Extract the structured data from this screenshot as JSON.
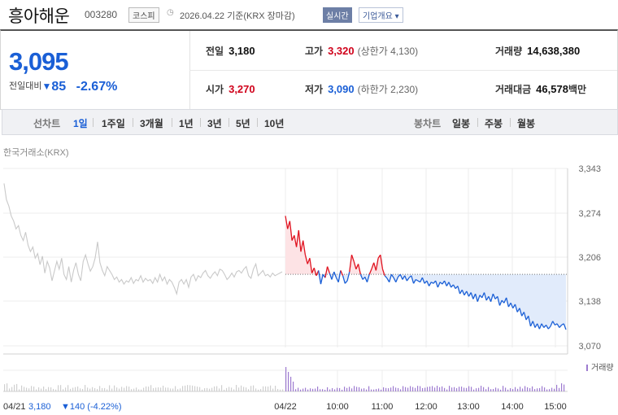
{
  "header": {
    "company": "흥아해운",
    "code": "003280",
    "market": "코스피",
    "date_text": "2026.04.22 기준(KRX 장마감)",
    "realtime_label": "실시간",
    "corp_info_label": "기업개요 ▾"
  },
  "quote": {
    "price": "3,095",
    "change_label": "전일대비",
    "change_arrow": "▼",
    "change": "85",
    "change_pct": "-2.67%",
    "prev_label": "전일",
    "prev": "3,180",
    "high_label": "고가",
    "high": "3,320",
    "upper_limit": "(상한가 4,130)",
    "volume_label": "거래량",
    "volume": "14,638,380",
    "open_label": "시가",
    "open": "3,270",
    "low_label": "저가",
    "low": "3,090",
    "lower_limit": "(하한가 2,230)",
    "value_label": "거래대금",
    "value": "46,578",
    "value_unit": "백만"
  },
  "tabs": {
    "line_chart_label": "선차트",
    "line_periods": [
      "1일",
      "1주일",
      "3개월",
      "1년",
      "3년",
      "5년",
      "10년"
    ],
    "active_period": "1일",
    "candle_chart_label": "봉차트",
    "candle_periods": [
      "일봉",
      "주봉",
      "월봉"
    ]
  },
  "chart_data": {
    "type": "line",
    "source_label": "한국거래소(KRX)",
    "y_ticks": [
      "3,343",
      "3,274",
      "3,206",
      "3,138",
      "3,070"
    ],
    "ylim": [
      3058,
      3343
    ],
    "x_ticks": [
      "04/22",
      "10:00",
      "11:00",
      "12:00",
      "13:00",
      "14:00",
      "15:00"
    ],
    "prev_day_label": "04/21",
    "prev_close": 3180,
    "prev_close_text": "3,180",
    "prev_day_change": "▼140 (-4.22%)",
    "volume_legend": "거래량",
    "colors": {
      "up": "#e0121f",
      "down": "#1a5fd6",
      "prev": "#c9c9c9",
      "up_fill": "#fde3e5",
      "down_fill": "#e1ebfb"
    },
    "prev_day_prices": [
      3320,
      3295,
      3285,
      3270,
      3262,
      3250,
      3255,
      3240,
      3232,
      3245,
      3225,
      3215,
      3222,
      3205,
      3212,
      3195,
      3208,
      3182,
      3200,
      3190,
      3170,
      3185,
      3200,
      3188,
      3205,
      3180,
      3172,
      3192,
      3168,
      3186,
      3198,
      3180,
      3170,
      3200,
      3210,
      3196,
      3185,
      3192,
      3205,
      3230,
      3198,
      3186,
      3178,
      3192,
      3186,
      3180,
      3172,
      3176,
      3168,
      3172,
      3165,
      3170,
      3168,
      3175,
      3166,
      3172,
      3170,
      3178,
      3168,
      3174,
      3170,
      3172,
      3166,
      3175,
      3168,
      3180,
      3170,
      3176,
      3165,
      3172,
      3168,
      3160,
      3150,
      3168,
      3172,
      3165,
      3172,
      3160,
      3176,
      3180,
      3170,
      3178,
      3175,
      3182,
      3186,
      3178,
      3174,
      3180,
      3184,
      3178,
      3188,
      3186,
      3180,
      3172,
      3176,
      3182,
      3176,
      3184,
      3186,
      3182,
      3188,
      3192,
      3178,
      3174,
      3188,
      3196,
      3178,
      3182,
      3186,
      3178,
      3180,
      3176,
      3182,
      3178,
      3180,
      3182,
      3184
    ],
    "today_prices": [
      3270,
      3250,
      3262,
      3232,
      3240,
      3222,
      3248,
      3215,
      3232,
      3210,
      3196,
      3205,
      3182,
      3190,
      3178,
      3186,
      3165,
      3180,
      3175,
      3192,
      3182,
      3172,
      3184,
      3175,
      3168,
      3186,
      3178,
      3166,
      3170,
      3184,
      3210,
      3200,
      3188,
      3196,
      3180,
      3172,
      3176,
      3168,
      3180,
      3188,
      3198,
      3186,
      3205,
      3210,
      3188,
      3178,
      3174,
      3168,
      3180,
      3175,
      3168,
      3176,
      3180,
      3172,
      3178,
      3170,
      3175,
      3178,
      3166,
      3172,
      3170,
      3168,
      3175,
      3166,
      3170,
      3162,
      3168,
      3166,
      3170,
      3160,
      3168,
      3165,
      3170,
      3162,
      3168,
      3160,
      3164,
      3158,
      3162,
      3150,
      3156,
      3148,
      3154,
      3146,
      3152,
      3142,
      3150,
      3138,
      3148,
      3144,
      3152,
      3140,
      3146,
      3138,
      3150,
      3142,
      3146,
      3132,
      3140,
      3136,
      3144,
      3130,
      3136,
      3128,
      3134,
      3122,
      3128,
      3116,
      3122,
      3110,
      3116,
      3100,
      3108,
      3098,
      3104,
      3096,
      3104,
      3098,
      3102,
      3096,
      3100,
      3108,
      3102,
      3104,
      3098,
      3102,
      3104,
      3095
    ]
  }
}
